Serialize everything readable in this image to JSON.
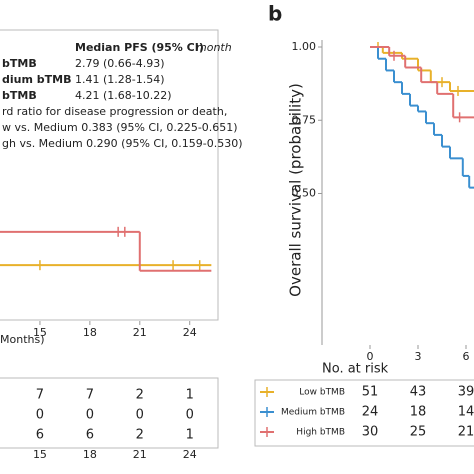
{
  "chart_data": [
    {
      "type": "step",
      "x_label": "Months)",
      "xlim": [
        12.6,
        25.7
      ],
      "xticks": [
        15,
        18,
        21,
        24
      ],
      "ylim": [
        0,
        1
      ],
      "median_table": {
        "header": "Median PFS (95% CI)",
        "unit": "month",
        "rows": [
          {
            "label": "bTMB",
            "value": "2.79 (0.66-4.93)"
          },
          {
            "label": "dium bTMB",
            "value": "1.41 (1.28-1.54)"
          },
          {
            "label": "bTMB",
            "value": "4.21 (1.68-10.22)"
          }
        ]
      },
      "notes": [
        "rd ratio for disease progression or death,",
        "w vs. Medium 0.383 (95% CI, 0.225-0.651)",
        "gh vs. Medium 0.290 (95% CI, 0.159-0.530)"
      ],
      "series": [
        {
          "color": "#e8b12a",
          "x": [
            12.6,
            25.3
          ],
          "values": [
            0.19,
            0.19
          ],
          "censor": [
            15,
            23,
            24.6
          ]
        },
        {
          "color": "#e07070",
          "x": [
            12.6,
            21,
            25.3
          ],
          "values": [
            0.31,
            0.17,
            0.17
          ],
          "censor": [
            19.7,
            20.1
          ]
        }
      ],
      "risk_table": {
        "rows": [
          {
            "values": [
              7,
              7,
              2,
              1
            ]
          },
          {
            "values": [
              0,
              0,
              0,
              0
            ]
          },
          {
            "values": [
              6,
              6,
              2,
              1
            ]
          }
        ]
      }
    },
    {
      "type": "step",
      "panel": "b",
      "y_label": "Overall survival (probability)",
      "xlim": [
        -3,
        6.5
      ],
      "xticks": [
        0,
        3,
        6
      ],
      "ylim": [
        0,
        1
      ],
      "yticks": [
        {
          "value": 1,
          "label": "1.00"
        },
        {
          "value": 0.75,
          "label": "0.75"
        },
        {
          "value": 0.5,
          "label": "0.50"
        }
      ],
      "series": [
        {
          "color": "#e8b12a",
          "x": [
            0,
            0.8,
            2,
            3,
            3.8,
            5,
            6.5
          ],
          "values": [
            1,
            0.98,
            0.96,
            0.92,
            0.88,
            0.85,
            0.85
          ],
          "censor": [
            0.5,
            4.5,
            5.5
          ]
        },
        {
          "color": "#3a8fd0",
          "x": [
            0,
            0.5,
            1,
            1.5,
            2,
            2.5,
            3,
            3.5,
            4,
            4.5,
            5,
            5.8,
            6.2,
            6.5
          ],
          "values": [
            1,
            0.96,
            0.92,
            0.88,
            0.84,
            0.8,
            0.78,
            0.74,
            0.7,
            0.66,
            0.62,
            0.56,
            0.52,
            0.52
          ],
          "censor": []
        },
        {
          "color": "#e07070",
          "x": [
            0,
            1.2,
            2.2,
            3.2,
            4.2,
            5.2,
            6.5
          ],
          "values": [
            1,
            0.97,
            0.93,
            0.88,
            0.84,
            0.76,
            0.76
          ],
          "censor": [
            1.5,
            5.6
          ]
        }
      ],
      "risk_table": {
        "title": "No. at risk",
        "rows": [
          {
            "label": "Low bTMB",
            "color": "#e8b12a",
            "values": [
              51,
              43,
              39
            ]
          },
          {
            "label": "Medium bTMB",
            "color": "#3a8fd0",
            "values": [
              24,
              18,
              14
            ]
          },
          {
            "label": "High bTMB",
            "color": "#e07070",
            "values": [
              30,
              25,
              21
            ]
          }
        ]
      }
    }
  ]
}
